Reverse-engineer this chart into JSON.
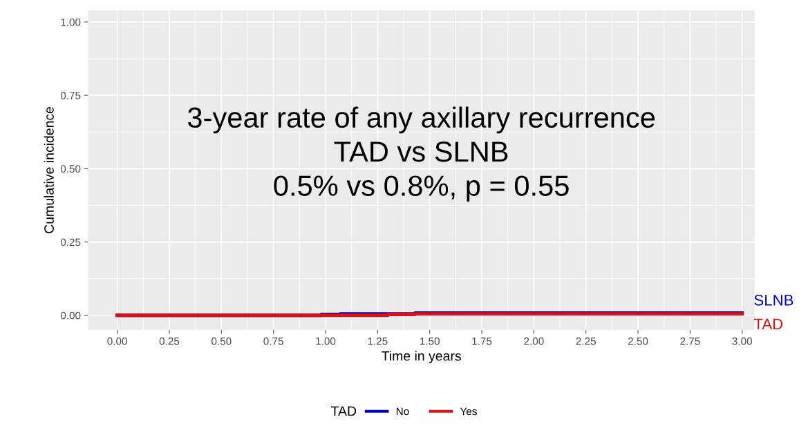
{
  "chart_data": {
    "type": "step",
    "xlabel": "Time in years",
    "ylabel": "Cumulative incidence",
    "legend_title": "TAD",
    "series": [
      {
        "name": "No",
        "color": "#0000cc",
        "x": [
          0,
          0.98,
          1.07,
          1.43,
          3.0
        ],
        "values": [
          0,
          0.003,
          0.005,
          0.008,
          0.008
        ]
      },
      {
        "name": "Yes",
        "color": "#dd1111",
        "x": [
          0,
          1.03,
          1.3,
          1.43,
          3.0
        ],
        "values": [
          0,
          0.0,
          0.003,
          0.005,
          0.005
        ]
      }
    ],
    "annotations": [
      {
        "text": "SLNB",
        "x": 3.0,
        "y": 0.008
      },
      {
        "text": "TAD",
        "x": 3.0,
        "y": 0.005
      },
      "3-year rate of any axillary recurrence\nTAD vs SLNB\n0.5% vs 0.8%, p = 0.55"
    ],
    "xlim": [
      -0.14,
      3.06
    ],
    "ylim": [
      -0.05,
      1.04
    ],
    "xticks": [
      {
        "value": 0,
        "label": "0.00"
      },
      {
        "value": 0.25,
        "label": "0.25"
      },
      {
        "value": 0.5,
        "label": "0.50"
      },
      {
        "value": 0.75,
        "label": "0.75"
      },
      {
        "value": 1,
        "label": "1.00"
      },
      {
        "value": 1.25,
        "label": "1.25"
      },
      {
        "value": 1.5,
        "label": "1.50"
      },
      {
        "value": 1.75,
        "label": "1.75"
      },
      {
        "value": 2,
        "label": "2.00"
      },
      {
        "value": 2.25,
        "label": "2.25"
      },
      {
        "value": 2.5,
        "label": "2.50"
      },
      {
        "value": 2.75,
        "label": "2.75"
      },
      {
        "value": 3,
        "label": "3.00"
      }
    ],
    "yticks": [
      {
        "value": 0,
        "label": "0.00"
      },
      {
        "value": 0.25,
        "label": "0.25"
      },
      {
        "value": 0.5,
        "label": "0.50"
      },
      {
        "value": 0.75,
        "label": "0.75"
      },
      {
        "value": 1,
        "label": "1.00"
      }
    ],
    "grid": true,
    "legend": "bottom"
  }
}
